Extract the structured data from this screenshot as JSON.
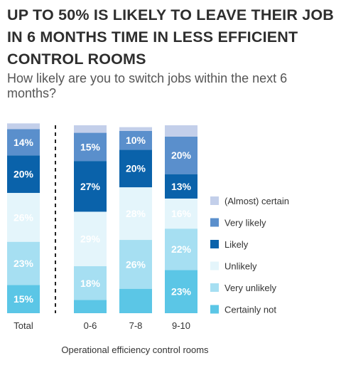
{
  "header": {
    "title": "UP TO 50% IS LIKELY TO LEAVE THEIR JOB IN 6 MONTHS TIME IN LESS EFFICIENT CONTROL ROOMS",
    "subtitle": "How likely are you to switch jobs within the next 6 months?"
  },
  "chart_data": {
    "type": "bar",
    "stacked": true,
    "percent": true,
    "title": "UP TO 50% IS LIKELY TO LEAVE THEIR JOB IN 6 MONTHS TIME IN LESS EFFICIENT CONTROL ROOMS",
    "subtitle": "How likely are you to switch jobs within the next 6 months?",
    "xlabel": "Operational efficiency control rooms",
    "ylabel": "",
    "ylim": [
      0,
      100
    ],
    "categories": [
      "Total",
      "0-6",
      "7-8",
      "9-10"
    ],
    "series": [
      {
        "name": "Certainly not",
        "color": "#5bc6e6",
        "values": [
          15,
          7,
          13,
          23
        ],
        "labels": [
          "15%",
          "",
          "",
          "23%"
        ]
      },
      {
        "name": "Very unlikely",
        "color": "#a6dff2",
        "values": [
          23,
          18,
          26,
          22
        ],
        "labels": [
          "23%",
          "18%",
          "26%",
          "22%"
        ]
      },
      {
        "name": "Unlikely",
        "color": "#e4f5fb",
        "values": [
          26,
          29,
          28,
          16
        ],
        "labels": [
          "26%",
          "29%",
          "28%",
          "16%"
        ]
      },
      {
        "name": "Likely",
        "color": "#0a62aa",
        "values": [
          20,
          27,
          20,
          13
        ],
        "labels": [
          "20%",
          "27%",
          "20%",
          "13%"
        ]
      },
      {
        "name": "Very likely",
        "color": "#5a8fcc",
        "values": [
          14,
          15,
          10,
          20
        ],
        "labels": [
          "14%",
          "15%",
          "10%",
          "20%"
        ]
      },
      {
        "name": "(Almost) certain",
        "color": "#c3cfea",
        "values": [
          3,
          4,
          2,
          6
        ],
        "labels": [
          "",
          "",
          "",
          ""
        ]
      }
    ],
    "legend_position": "right",
    "grid": false
  }
}
